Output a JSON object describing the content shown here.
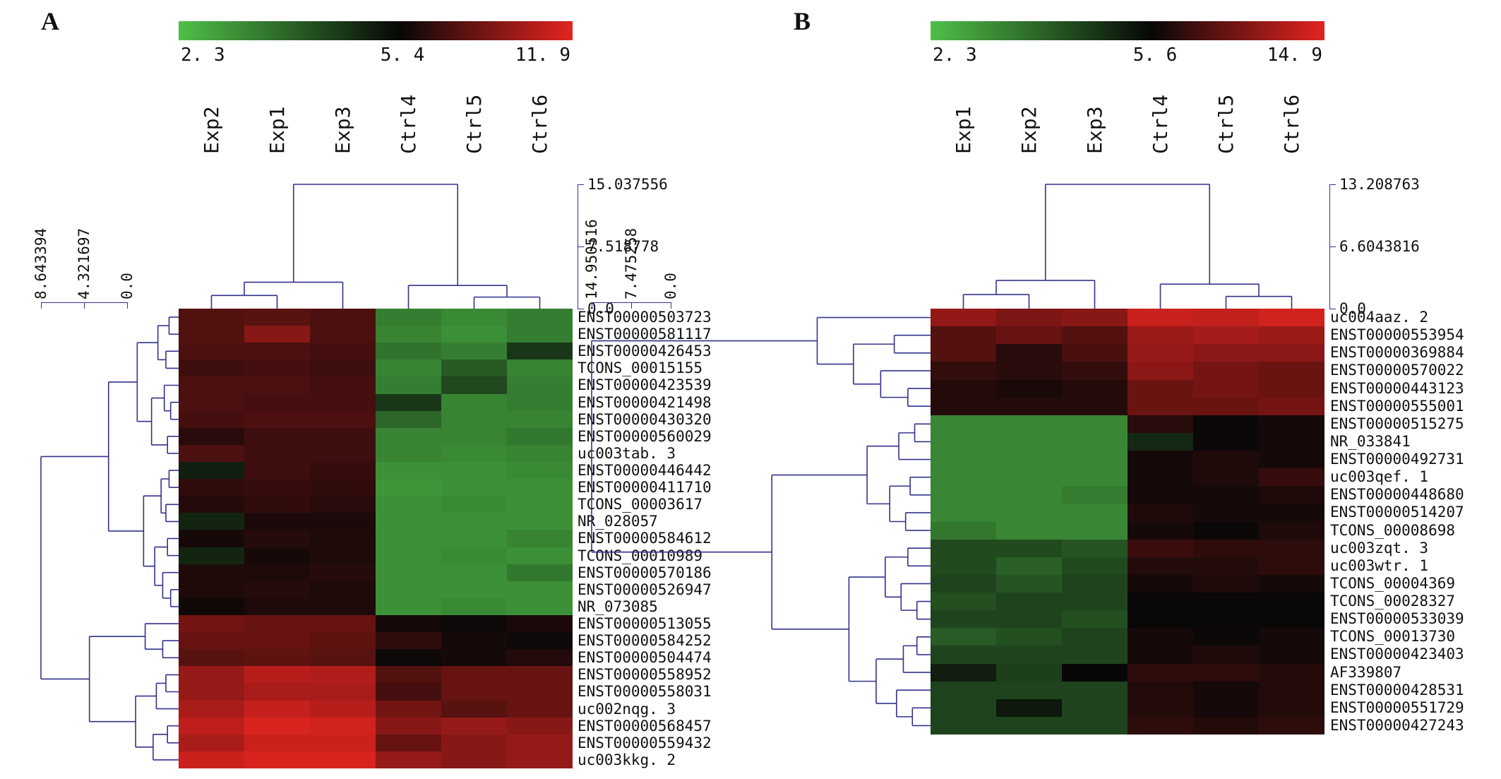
{
  "style": {
    "background": "#ffffff",
    "dendrogram_color": "#32328e",
    "text_color": "#111111"
  },
  "chart_data": [
    {
      "type": "heatmap",
      "panel_label": "A",
      "colorbar": {
        "min": "2. 3",
        "mid": "5. 4",
        "max": "11. 9"
      },
      "color_scale": {
        "min_value": 2.3,
        "mid_value": 5.4,
        "max_value": 11.9,
        "low_color": "#4fbf48",
        "mid_color": "#070707",
        "high_color": "#e32420"
      },
      "columns": [
        "Exp2",
        "Exp1",
        "Exp3",
        "Ctrl4",
        "Ctrl5",
        "Ctrl6"
      ],
      "rows": [
        "ENST00000503723",
        "ENST00000581117",
        "ENST00000426453",
        "TCONS_00015155",
        "ENST00000423539",
        "ENST00000421498",
        "ENST00000430320",
        "ENST00000560029",
        "uc003tab. 3",
        "ENST00000446442",
        "ENST00000411710",
        "TCONS_00003617",
        "NR_028057",
        "ENST00000584612",
        "TCONS_00010989",
        "ENST00000570186",
        "ENST00000526947",
        "NR_073085",
        "ENST00000513055",
        "ENST00000584252",
        "ENST00000504474",
        "ENST00000558952",
        "ENST00000558031",
        "uc002nqg. 3",
        "ENST00000568457",
        "ENST00000559432",
        "uc003kkg. 2"
      ],
      "values": [
        [
          7.6,
          7.8,
          7.4,
          3.4,
          3.2,
          3.4
        ],
        [
          7.6,
          9.2,
          7.4,
          3.3,
          3.1,
          3.4
        ],
        [
          7.4,
          7.4,
          7.2,
          3.6,
          3.4,
          4.6
        ],
        [
          7.0,
          7.2,
          7.0,
          3.3,
          4.0,
          3.3
        ],
        [
          7.4,
          7.4,
          7.2,
          3.4,
          4.3,
          3.4
        ],
        [
          7.4,
          7.2,
          7.2,
          4.6,
          3.3,
          3.4
        ],
        [
          7.2,
          7.4,
          7.4,
          3.8,
          3.3,
          3.3
        ],
        [
          6.4,
          7.0,
          7.0,
          3.3,
          3.3,
          3.5
        ],
        [
          7.4,
          7.0,
          7.0,
          3.3,
          3.2,
          3.3
        ],
        [
          5.0,
          7.0,
          6.8,
          3.1,
          3.1,
          3.2
        ],
        [
          6.6,
          6.8,
          6.6,
          3.0,
          3.1,
          3.1
        ],
        [
          6.2,
          6.6,
          6.4,
          3.1,
          3.2,
          3.1
        ],
        [
          4.9,
          6.0,
          6.0,
          3.1,
          3.1,
          3.1
        ],
        [
          5.9,
          6.3,
          6.1,
          3.1,
          3.1,
          3.3
        ],
        [
          4.9,
          5.9,
          6.1,
          3.1,
          3.2,
          3.1
        ],
        [
          6.1,
          6.1,
          6.3,
          3.1,
          3.1,
          3.5
        ],
        [
          6.1,
          6.3,
          6.1,
          3.1,
          3.1,
          3.1
        ],
        [
          5.7,
          6.1,
          6.1,
          3.1,
          3.2,
          3.1
        ],
        [
          8.6,
          8.2,
          8.2,
          5.8,
          5.6,
          6.0
        ],
        [
          8.2,
          8.2,
          8.0,
          6.6,
          5.8,
          5.6
        ],
        [
          7.8,
          8.0,
          7.8,
          5.6,
          5.8,
          6.2
        ],
        [
          9.6,
          10.6,
          10.4,
          7.6,
          8.2,
          8.2
        ],
        [
          9.6,
          10.2,
          10.2,
          7.2,
          8.2,
          8.2
        ],
        [
          10.2,
          11.0,
          10.6,
          8.6,
          7.8,
          8.2
        ],
        [
          10.8,
          11.6,
          11.4,
          9.2,
          9.6,
          9.2
        ],
        [
          10.2,
          11.2,
          11.2,
          8.2,
          9.2,
          9.6
        ],
        [
          11.2,
          11.6,
          11.6,
          9.6,
          9.2,
          9.6
        ]
      ],
      "col_dendrogram": {
        "max": 15.037556,
        "scale_labels": [
          "15.037556",
          "7.518778",
          "0.0"
        ],
        "tree": {
          "h": 15.037556,
          "c": [
            {
              "h": 3.2,
              "c": [
                {
                  "h": 1.6,
                  "c": [
                    0,
                    1
                  ]
                },
                2
              ]
            },
            {
              "h": 2.8,
              "c": [
                3,
                {
                  "h": 1.4,
                  "c": [
                    4,
                    5
                  ]
                }
              ]
            }
          ]
        }
      },
      "row_dendrogram": {
        "max": 8.643394,
        "scale_labels": [
          "8.643394",
          "4.321697",
          "0.0"
        ],
        "tree": {
          "h": 8.643394,
          "c": [
            {
              "h": 4.4,
              "c": [
                {
                  "h": 2.6,
                  "c": [
                    {
                      "h": 1.3,
                      "c": [
                        {
                          "h": 0.6,
                          "c": [
                            0,
                            1
                          ]
                        },
                        {
                          "h": 0.8,
                          "c": [
                            2,
                            3
                          ]
                        }
                      ]
                    },
                    {
                      "h": 1.7,
                      "c": [
                        {
                          "h": 0.9,
                          "c": [
                            4,
                            {
                              "h": 0.5,
                              "c": [
                                5,
                                6
                              ]
                            }
                          ]
                        },
                        {
                          "h": 0.7,
                          "c": [
                            7,
                            8
                          ]
                        }
                      ]
                    }
                  ]
                },
                {
                  "h": 2.2,
                  "c": [
                    {
                      "h": 1.1,
                      "c": [
                        {
                          "h": 0.6,
                          "c": [
                            9,
                            10
                          ]
                        },
                        {
                          "h": 0.8,
                          "c": [
                            11,
                            12
                          ]
                        }
                      ]
                    },
                    {
                      "h": 1.5,
                      "c": [
                        {
                          "h": 0.7,
                          "c": [
                            13,
                            14
                          ]
                        },
                        {
                          "h": 1.0,
                          "c": [
                            15,
                            {
                              "h": 0.5,
                              "c": [
                                16,
                                17
                              ]
                            }
                          ]
                        }
                      ]
                    }
                  ]
                }
              ]
            },
            {
              "h": 5.6,
              "c": [
                {
                  "h": 2.1,
                  "c": [
                    18,
                    {
                      "h": 1.0,
                      "c": [
                        19,
                        20
                      ]
                    }
                  ]
                },
                {
                  "h": 2.7,
                  "c": [
                    {
                      "h": 1.4,
                      "c": [
                        {
                          "h": 0.8,
                          "c": [
                            21,
                            22
                          ]
                        },
                        23
                      ]
                    },
                    {
                      "h": 1.6,
                      "c": [
                        {
                          "h": 0.7,
                          "c": [
                            24,
                            25
                          ]
                        },
                        26
                      ]
                    }
                  ]
                }
              ]
            }
          ]
        }
      }
    },
    {
      "type": "heatmap",
      "panel_label": "B",
      "colorbar": {
        "min": "2. 3",
        "mid": "5. 6",
        "max": "14. 9"
      },
      "color_scale": {
        "min_value": 2.3,
        "mid_value": 5.6,
        "max_value": 14.9,
        "low_color": "#4fbf48",
        "mid_color": "#070707",
        "high_color": "#e32420"
      },
      "columns": [
        "Exp1",
        "Exp2",
        "Exp3",
        "Ctrl4",
        "Ctrl5",
        "Ctrl6"
      ],
      "rows": [
        "uc004aaz. 2",
        "ENST00000553954",
        "ENST00000369884",
        "ENST00000570022",
        "ENST00000443123",
        "ENST00000555001",
        "ENST00000515275",
        "NR_033841",
        "ENST00000492731",
        "uc003qef. 1",
        "ENST00000448680",
        "ENST00000514207",
        "TCONS_00008698",
        "uc003zqt. 3",
        "uc003wtr. 1",
        "TCONS_00004369",
        "TCONS_00028327",
        "ENST00000533039",
        "TCONS_00013730",
        "ENST00000423403",
        "AF339807",
        "ENST00000428531",
        "ENST00000551729",
        "ENST00000427243"
      ],
      "values": [
        [
          11.5,
          10.5,
          11.0,
          13.8,
          13.5,
          14.2
        ],
        [
          8.8,
          9.6,
          8.8,
          11.8,
          12.2,
          11.8
        ],
        [
          8.8,
          7.0,
          8.4,
          11.6,
          11.2,
          11.2
        ],
        [
          7.4,
          7.0,
          7.4,
          11.2,
          10.2,
          9.8
        ],
        [
          6.8,
          6.4,
          6.8,
          9.8,
          10.2,
          9.8
        ],
        [
          6.8,
          6.8,
          6.8,
          9.8,
          9.8,
          10.2
        ],
        [
          3.3,
          3.3,
          3.3,
          7.0,
          5.8,
          6.2
        ],
        [
          3.3,
          3.3,
          3.3,
          5.0,
          5.8,
          6.2
        ],
        [
          3.3,
          3.3,
          3.3,
          6.2,
          6.6,
          6.2
        ],
        [
          3.3,
          3.3,
          3.3,
          6.2,
          6.6,
          7.6
        ],
        [
          3.3,
          3.3,
          3.5,
          6.2,
          6.2,
          6.6
        ],
        [
          3.3,
          3.3,
          3.3,
          6.6,
          6.2,
          6.2
        ],
        [
          3.6,
          3.3,
          3.3,
          6.2,
          5.8,
          6.6
        ],
        [
          4.4,
          4.4,
          4.2,
          7.8,
          7.2,
          7.2
        ],
        [
          4.4,
          4.0,
          4.4,
          6.8,
          6.8,
          7.2
        ],
        [
          4.5,
          4.2,
          4.5,
          6.2,
          6.6,
          6.2
        ],
        [
          4.3,
          4.5,
          4.5,
          5.7,
          5.7,
          5.7
        ],
        [
          4.5,
          4.5,
          4.3,
          5.7,
          5.7,
          5.7
        ],
        [
          4.1,
          4.3,
          4.5,
          6.2,
          5.8,
          6.2
        ],
        [
          4.5,
          4.5,
          4.5,
          6.2,
          6.6,
          6.2
        ],
        [
          5.2,
          4.6,
          5.6,
          7.2,
          7.2,
          6.8
        ],
        [
          4.5,
          4.5,
          4.5,
          6.8,
          6.2,
          6.8
        ],
        [
          4.5,
          5.3,
          4.5,
          6.8,
          6.2,
          6.8
        ],
        [
          4.5,
          4.5,
          4.5,
          7.2,
          6.8,
          7.2
        ]
      ],
      "col_dendrogram": {
        "max": 13.208763,
        "scale_labels": [
          "13.208763",
          "6.6043816",
          "0.0"
        ],
        "tree": {
          "h": 13.208763,
          "c": [
            {
              "h": 3.0,
              "c": [
                {
                  "h": 1.5,
                  "c": [
                    0,
                    1
                  ]
                },
                2
              ]
            },
            {
              "h": 2.6,
              "c": [
                3,
                {
                  "h": 1.3,
                  "c": [
                    4,
                    5
                  ]
                }
              ]
            }
          ]
        }
      },
      "row_dendrogram": {
        "max": 14.950516,
        "scale_labels": [
          "14.950516",
          "7.475258",
          "0.0"
        ],
        "tree": {
          "h": 14.950516,
          "c": [
            {
              "h": 5.0,
              "c": [
                0,
                {
                  "h": 3.4,
                  "c": [
                    {
                      "h": 1.6,
                      "c": [
                        1,
                        2
                      ]
                    },
                    {
                      "h": 2.2,
                      "c": [
                        3,
                        {
                          "h": 1.0,
                          "c": [
                            4,
                            5
                          ]
                        }
                      ]
                    }
                  ]
                }
              ]
            },
            {
              "h": 7.0,
              "c": [
                {
                  "h": 2.8,
                  "c": [
                    {
                      "h": 1.4,
                      "c": [
                        {
                          "h": 0.7,
                          "c": [
                            6,
                            7
                          ]
                        },
                        8
                      ]
                    },
                    {
                      "h": 1.8,
                      "c": [
                        {
                          "h": 0.9,
                          "c": [
                            9,
                            10
                          ]
                        },
                        {
                          "h": 1.1,
                          "c": [
                            11,
                            12
                          ]
                        }
                      ]
                    }
                  ]
                },
                {
                  "h": 3.6,
                  "c": [
                    {
                      "h": 2.0,
                      "c": [
                        {
                          "h": 1.0,
                          "c": [
                            13,
                            14
                          ]
                        },
                        {
                          "h": 1.3,
                          "c": [
                            15,
                            {
                              "h": 0.6,
                              "c": [
                                16,
                                17
                              ]
                            }
                          ]
                        }
                      ]
                    },
                    {
                      "h": 2.4,
                      "c": [
                        {
                          "h": 1.2,
                          "c": [
                            {
                              "h": 0.6,
                              "c": [
                                18,
                                19
                              ]
                            },
                            20
                          ]
                        },
                        {
                          "h": 1.5,
                          "c": [
                            21,
                            {
                              "h": 0.8,
                              "c": [
                                22,
                                23
                              ]
                            }
                          ]
                        }
                      ]
                    }
                  ]
                }
              ]
            }
          ]
        }
      }
    }
  ]
}
